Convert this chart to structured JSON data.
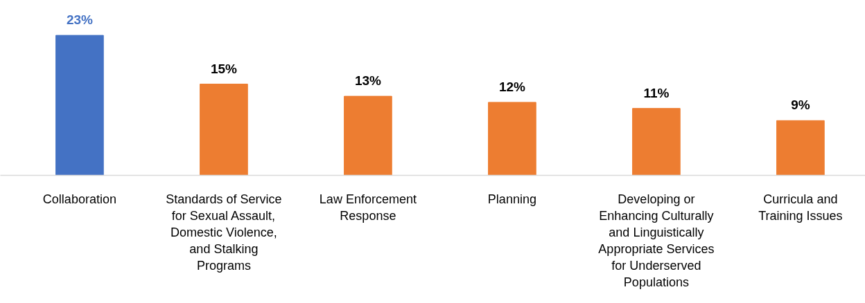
{
  "chart_data": {
    "type": "bar",
    "categories": [
      "Collaboration",
      "Standards of Service for Sexual Assault, Domestic Violence, and Stalking Programs",
      "Law Enforcement Response",
      "Planning",
      "Developing or Enhancing Culturally and Linguistically Appropriate Services for Underserved Populations",
      "Curricula and Training Issues"
    ],
    "values": [
      23,
      15,
      13,
      12,
      11,
      9
    ],
    "colors": [
      "#4472c4",
      "#ed7d31",
      "#ed7d31",
      "#ed7d31",
      "#ed7d31",
      "#ed7d31"
    ],
    "value_labels": [
      "23%",
      "15%",
      "13%",
      "12%",
      "11%",
      "9%"
    ],
    "grid": false
  }
}
